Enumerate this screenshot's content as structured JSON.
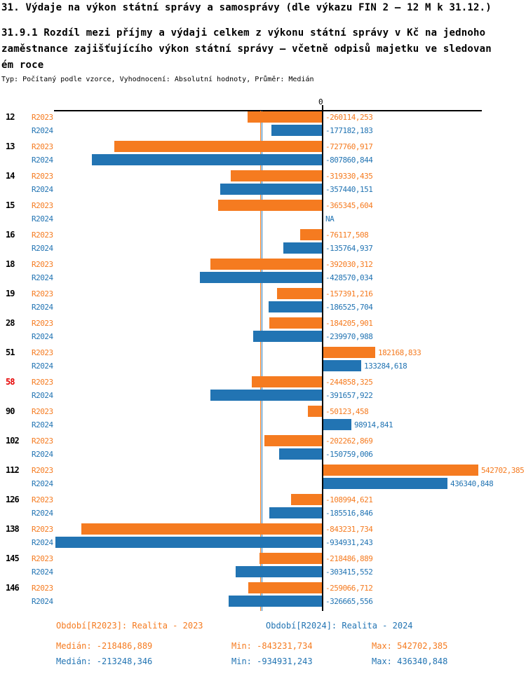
{
  "chart_data": {
    "type": "bar",
    "orientation": "horizontal",
    "title": "31. Výdaje na výkon státní správy a samosprávy (dle výkazu FIN 2 – 12 M k 31.12.)",
    "subtitle_lines": [
      "31.9.1 Rozdíl mezi příjmy a výdaji celkem z výkonu státní správy v Kč na jednoho",
      "zaměstnance zajišťujícího výkon státní správy – včetně odpisů majetku ve sledovan",
      "ém roce"
    ],
    "meta": "Typ: Počítaný podle vzorce, Vyhodnocení: Absolutní hodnoty, Průměr: Medián",
    "zero_tick_label": "0",
    "xlim": [
      -942000,
      558000
    ],
    "gridlines": "none",
    "na_text": "NA",
    "highlighted_category": "58",
    "highlight_color": "#e60000",
    "categories": [
      "12",
      "13",
      "14",
      "15",
      "16",
      "18",
      "19",
      "28",
      "51",
      "58",
      "90",
      "102",
      "112",
      "126",
      "138",
      "145",
      "146"
    ],
    "series": [
      {
        "name": "R2023",
        "legend_label": "Období[R2023]: Realita - 2023",
        "color": "#f57b20",
        "median": -218486.889,
        "min": -843231.734,
        "max": 542702.385,
        "median_label": "Medián: -218486,889",
        "min_label": "Min: -843231,734",
        "max_label": "Max: 542702,385"
      },
      {
        "name": "R2024",
        "legend_label": "Období[R2024]: Realita - 2024",
        "color": "#2274b3",
        "median": -213248.346,
        "min": -934931.243,
        "max": 436340.848,
        "median_label": "Medián: -213248,346",
        "min_label": "Min: -934931,243",
        "max_label": "Max: 436340,848"
      }
    ],
    "rows": [
      {
        "category": "12",
        "bars": [
          {
            "period": "R2023",
            "value": -260114.253,
            "label": "-260114,253"
          },
          {
            "period": "R2024",
            "value": -177182.183,
            "label": "-177182,183"
          }
        ]
      },
      {
        "category": "13",
        "bars": [
          {
            "period": "R2023",
            "value": -727760.917,
            "label": "-727760,917"
          },
          {
            "period": "R2024",
            "value": -807860.844,
            "label": "-807860,844"
          }
        ]
      },
      {
        "category": "14",
        "bars": [
          {
            "period": "R2023",
            "value": -319330.435,
            "label": "-319330,435"
          },
          {
            "period": "R2024",
            "value": -357440.151,
            "label": "-357440,151"
          }
        ]
      },
      {
        "category": "15",
        "bars": [
          {
            "period": "R2023",
            "value": -365345.604,
            "label": "-365345,604"
          },
          {
            "period": "R2024",
            "value": null,
            "label": "NA"
          }
        ]
      },
      {
        "category": "16",
        "bars": [
          {
            "period": "R2023",
            "value": -76117.508,
            "label": "-76117,508"
          },
          {
            "period": "R2024",
            "value": -135764.937,
            "label": "-135764,937"
          }
        ]
      },
      {
        "category": "18",
        "bars": [
          {
            "period": "R2023",
            "value": -392030.312,
            "label": "-392030,312"
          },
          {
            "period": "R2024",
            "value": -428570.034,
            "label": "-428570,034"
          }
        ]
      },
      {
        "category": "19",
        "bars": [
          {
            "period": "R2023",
            "value": -157391.216,
            "label": "-157391,216"
          },
          {
            "period": "R2024",
            "value": -186525.704,
            "label": "-186525,704"
          }
        ]
      },
      {
        "category": "28",
        "bars": [
          {
            "period": "R2023",
            "value": -184205.901,
            "label": "-184205,901"
          },
          {
            "period": "R2024",
            "value": -239970.988,
            "label": "-239970,988"
          }
        ]
      },
      {
        "category": "51",
        "bars": [
          {
            "period": "R2023",
            "value": 182168.833,
            "label": "182168,833"
          },
          {
            "period": "R2024",
            "value": 133284.618,
            "label": "133284,618"
          }
        ]
      },
      {
        "category": "58",
        "bars": [
          {
            "period": "R2023",
            "value": -244858.325,
            "label": "-244858,325"
          },
          {
            "period": "R2024",
            "value": -391657.922,
            "label": "-391657,922"
          }
        ]
      },
      {
        "category": "90",
        "bars": [
          {
            "period": "R2023",
            "value": -50123.458,
            "label": "-50123,458"
          },
          {
            "period": "R2024",
            "value": 98914.841,
            "label": "98914,841"
          }
        ]
      },
      {
        "category": "102",
        "bars": [
          {
            "period": "R2023",
            "value": -202262.869,
            "label": "-202262,869"
          },
          {
            "period": "R2024",
            "value": -150759.006,
            "label": "-150759,006"
          }
        ]
      },
      {
        "category": "112",
        "bars": [
          {
            "period": "R2023",
            "value": 542702.385,
            "label": "542702,385"
          },
          {
            "period": "R2024",
            "value": 436340.848,
            "label": "436340,848"
          }
        ]
      },
      {
        "category": "126",
        "bars": [
          {
            "period": "R2023",
            "value": -108994.621,
            "label": "-108994,621"
          },
          {
            "period": "R2024",
            "value": -185516.846,
            "label": "-185516,846"
          }
        ]
      },
      {
        "category": "138",
        "bars": [
          {
            "period": "R2023",
            "value": -843231.734,
            "label": "-843231,734"
          },
          {
            "period": "R2024",
            "value": -934931.243,
            "label": "-934931,243"
          }
        ]
      },
      {
        "category": "145",
        "bars": [
          {
            "period": "R2023",
            "value": -218486.889,
            "label": "-218486,889"
          },
          {
            "period": "R2024",
            "value": -303415.552,
            "label": "-303415,552"
          }
        ]
      },
      {
        "category": "146",
        "bars": [
          {
            "period": "R2023",
            "value": -259066.712,
            "label": "-259066,712"
          },
          {
            "period": "R2024",
            "value": -326665.556,
            "label": "-326665,556"
          }
        ]
      }
    ]
  }
}
